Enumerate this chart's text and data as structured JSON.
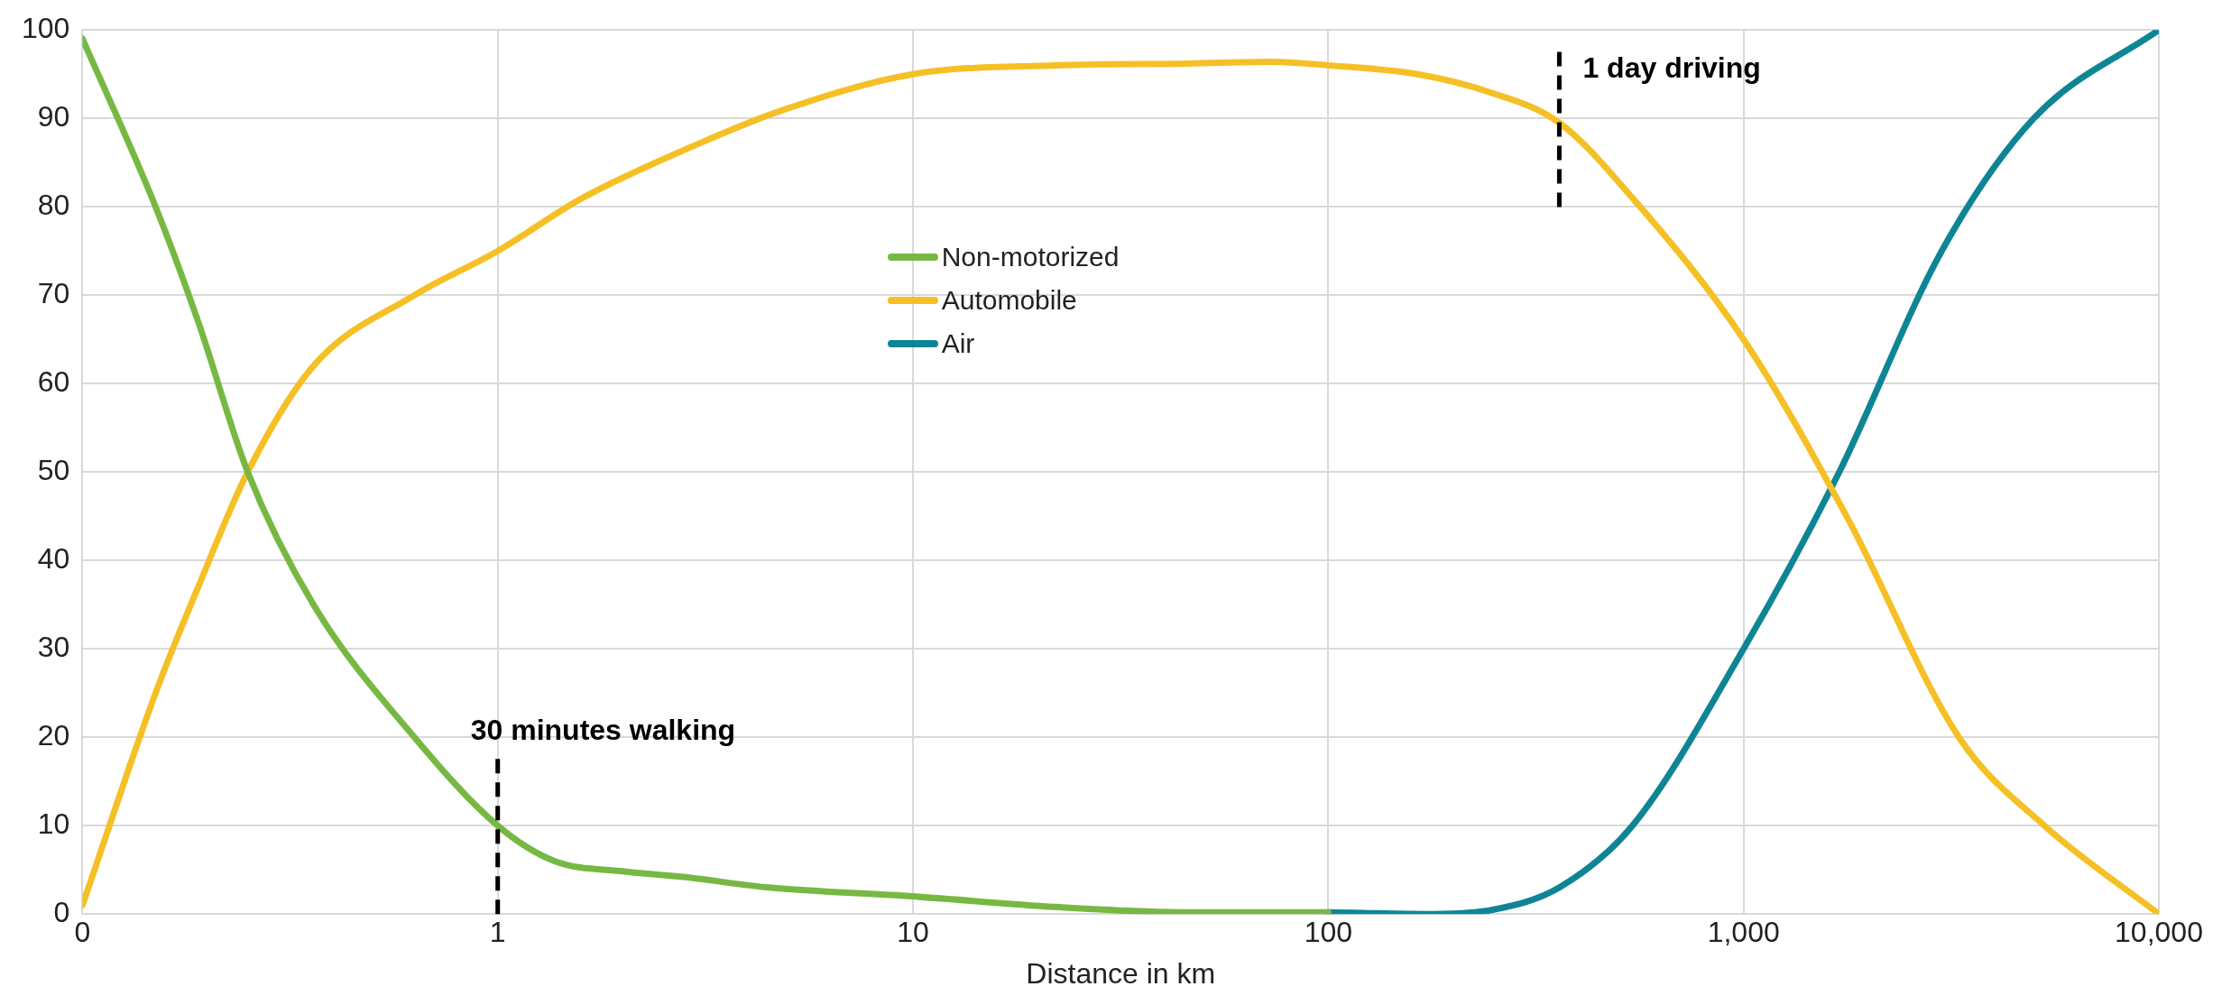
{
  "chart_data": {
    "type": "line",
    "xlabel": "Distance in km",
    "log": "x",
    "xlim": [
      0.1,
      10000
    ],
    "xticks": [
      {
        "value": 0.1,
        "label": "0"
      },
      1,
      10,
      100,
      {
        "value": 1000,
        "label": "1,000"
      },
      {
        "value": 10000,
        "label": "10,000"
      }
    ],
    "ylim": [
      0,
      100
    ],
    "yticks": [
      0,
      10,
      20,
      30,
      40,
      50,
      60,
      70,
      80,
      90,
      100
    ],
    "grid": true,
    "legend": "top",
    "marker": "none",
    "line_style": "solid",
    "series": [
      {
        "name": "Non-motorized",
        "color": "#77b843",
        "x": [
          0.1,
          0.15,
          0.19,
          0.25,
          0.36,
          0.63,
          1,
          1.37,
          2.04,
          2.8,
          4.5,
          10,
          22,
          46,
          100
        ],
        "values": [
          99,
          80,
          67,
          50,
          35,
          20,
          10,
          6,
          4.8,
          4.2,
          3,
          2,
          0.8,
          0.2,
          0.2
        ]
      },
      {
        "name": "Automobile",
        "color": "#f5c026",
        "x": [
          0.1,
          0.15,
          0.19,
          0.25,
          0.36,
          0.63,
          1,
          1.6,
          3,
          4.9,
          10,
          22,
          46,
          73,
          100,
          164,
          243,
          360,
          540,
          1000,
          1770,
          3300,
          5300,
          10000
        ],
        "values": [
          1,
          25,
          37,
          50,
          62,
          70,
          75,
          81,
          87,
          91,
          95,
          96,
          96.2,
          96.4,
          96,
          95,
          93,
          89.5,
          81,
          65,
          45,
          20,
          10,
          0
        ]
      },
      {
        "name": "Air",
        "color": "#0e8595",
        "x": [
          100,
          180,
          250,
          360,
          540,
          1000,
          1700,
          3000,
          5000,
          10000
        ],
        "values": [
          0.2,
          0,
          0.5,
          3,
          10,
          30,
          50,
          75,
          90,
          100
        ]
      }
    ],
    "ref_lines": [
      {
        "axis": "x",
        "value": 1,
        "label": "30 minutes walking",
        "color": "#000000",
        "line_style": "dashed"
      },
      {
        "axis": "x",
        "value": 360,
        "label": "1 day driving",
        "color": "#000000",
        "line_style": "dashed"
      }
    ]
  }
}
